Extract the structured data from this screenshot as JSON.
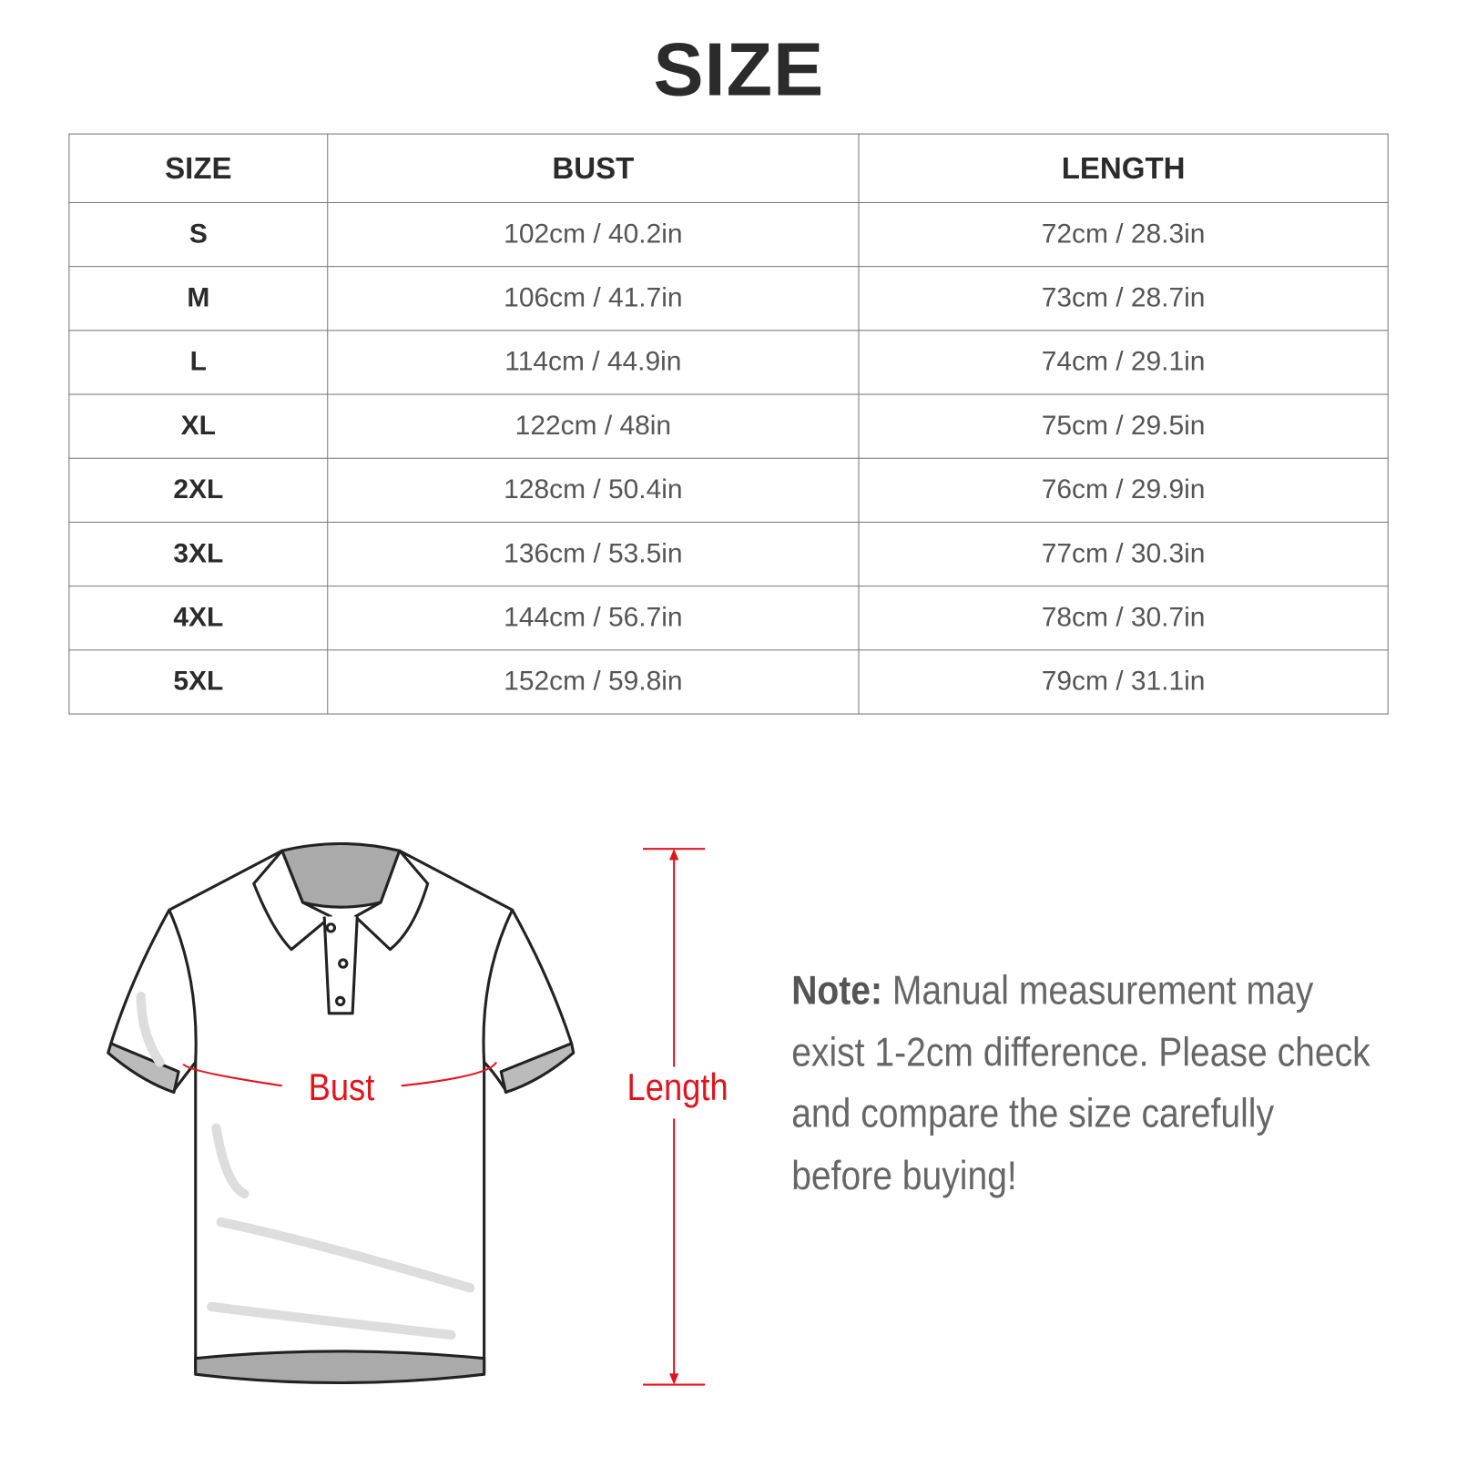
{
  "title": "SIZE",
  "table": {
    "headers": [
      "SIZE",
      "BUST",
      "LENGTH"
    ],
    "rows": [
      {
        "size": "S",
        "bust": "102cm / 40.2in",
        "length": "72cm / 28.3in"
      },
      {
        "size": "M",
        "bust": "106cm / 41.7in",
        "length": "73cm / 28.7in"
      },
      {
        "size": "L",
        "bust": "114cm / 44.9in",
        "length": "74cm / 29.1in"
      },
      {
        "size": "XL",
        "bust": "122cm / 48in",
        "length": "75cm / 29.5in"
      },
      {
        "size": "2XL",
        "bust": "128cm / 50.4in",
        "length": "76cm / 29.9in"
      },
      {
        "size": "3XL",
        "bust": "136cm / 53.5in",
        "length": "77cm / 30.3in"
      },
      {
        "size": "4XL",
        "bust": "144cm / 56.7in",
        "length": "78cm / 30.7in"
      },
      {
        "size": "5XL",
        "bust": "152cm / 59.8in",
        "length": "79cm / 31.1in"
      }
    ]
  },
  "diagram": {
    "bust_label": "Bust",
    "length_label": "Length",
    "accent_color": "#e0141e",
    "icon": "polo-shirt-illustration"
  },
  "note": {
    "label": "Note:",
    "text": "Manual measurement may exist 1-2cm difference. Please check and compare the size carefully before buying!"
  }
}
